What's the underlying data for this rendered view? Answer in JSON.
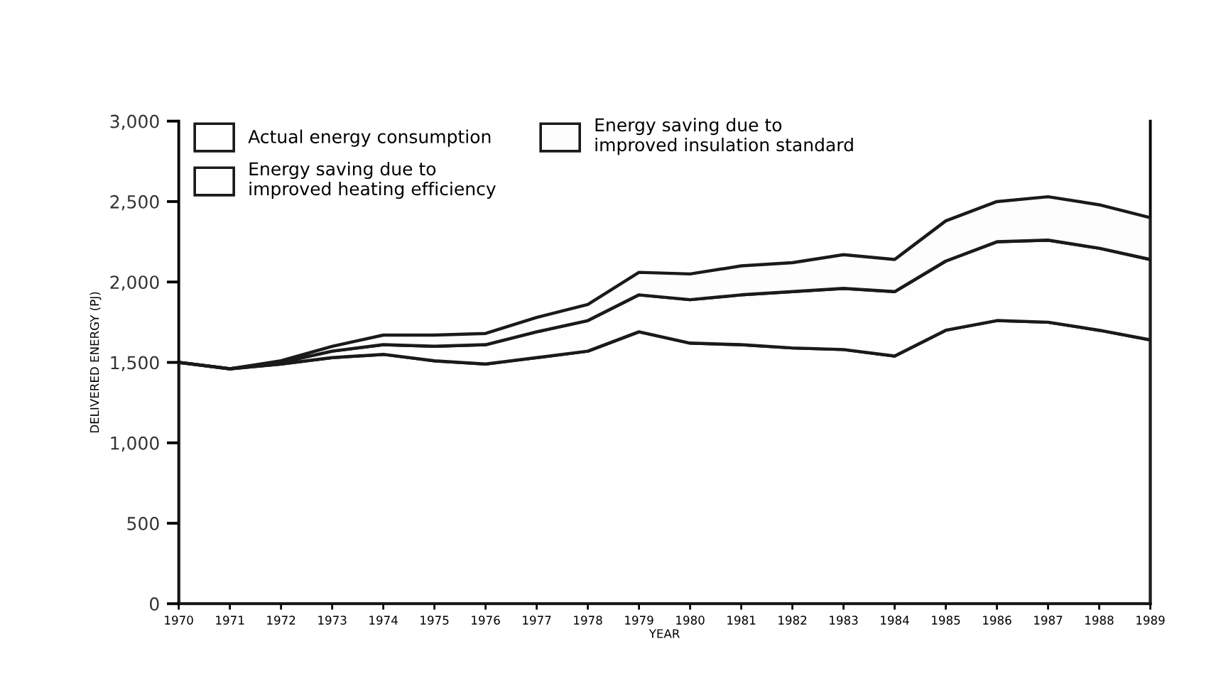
{
  "chart_data": {
    "type": "area",
    "stacked": true,
    "xlabel": "YEAR",
    "ylabel": "DELIVERED ENERGY (PJ)",
    "x": [
      1970,
      1971,
      1972,
      1973,
      1974,
      1975,
      1976,
      1977,
      1978,
      1979,
      1980,
      1981,
      1982,
      1983,
      1984,
      1985,
      1986,
      1987,
      1988,
      1989
    ],
    "series": [
      {
        "name": "Actual energy consumption",
        "color": "#ffffff",
        "values": [
          1500,
          1460,
          1490,
          1530,
          1550,
          1510,
          1490,
          1530,
          1570,
          1690,
          1620,
          1610,
          1590,
          1580,
          1540,
          1700,
          1760,
          1750,
          1700,
          1640
        ]
      },
      {
        "name": "Energy saving due to\nimproved heating efficiency",
        "color": "#fefefe",
        "values": [
          0,
          0,
          10,
          40,
          60,
          90,
          120,
          160,
          190,
          230,
          270,
          310,
          350,
          380,
          400,
          430,
          490,
          510,
          510,
          500
        ]
      },
      {
        "name": "Energy saving due to\nimproved insulation standard",
        "color": "#fdfdfd",
        "values": [
          0,
          0,
          10,
          30,
          60,
          70,
          70,
          90,
          100,
          140,
          160,
          180,
          180,
          210,
          200,
          250,
          250,
          270,
          270,
          260
        ]
      }
    ],
    "xlim": [
      1970,
      1989
    ],
    "xticks": [
      1970,
      1971,
      1972,
      1973,
      1974,
      1975,
      1976,
      1977,
      1978,
      1979,
      1980,
      1981,
      1982,
      1983,
      1984,
      1985,
      1986,
      1987,
      1988,
      1989
    ],
    "ylim": [
      0,
      3000
    ],
    "yticks": [
      0,
      500,
      {
        "value": 1000,
        "label": "1,000"
      },
      {
        "value": 1500,
        "label": "1,500"
      },
      {
        "value": 2000,
        "label": "2,000"
      },
      {
        "value": 2500,
        "label": "2,500"
      },
      {
        "value": 3000,
        "label": "3,000"
      }
    ],
    "grid": false,
    "legend": "top left"
  }
}
